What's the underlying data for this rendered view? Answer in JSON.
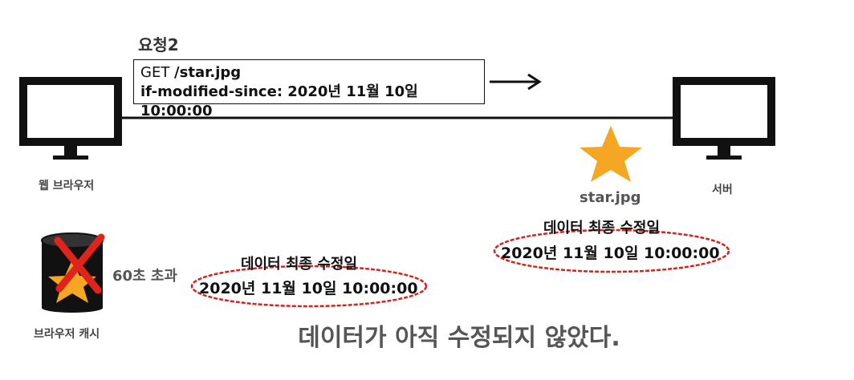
{
  "request": {
    "title": "요청2",
    "method": "GET ",
    "path": "/star.jpg",
    "header_line": "if-modified-since: 2020년 11월 10일 10:00:00"
  },
  "client": {
    "label": "웹 브라우저"
  },
  "server": {
    "label": "서버",
    "resource_name": "star.jpg"
  },
  "cache": {
    "label": "브라우저 캐시",
    "elapsed": "60초 초과"
  },
  "cache_meta": {
    "label": "데이터 최종 수정일",
    "date": "2020년 11월 10일 10:00:00"
  },
  "server_meta": {
    "label": "데이터 최종 수정일",
    "date": "2020년 11월 10일 10:00:00"
  },
  "footer": {
    "message": "데이터가 아직 수정되지 않았다."
  },
  "colors": {
    "star": "#F5A623",
    "cross": "#E0241B",
    "highlight_oval": "#D0261D"
  }
}
